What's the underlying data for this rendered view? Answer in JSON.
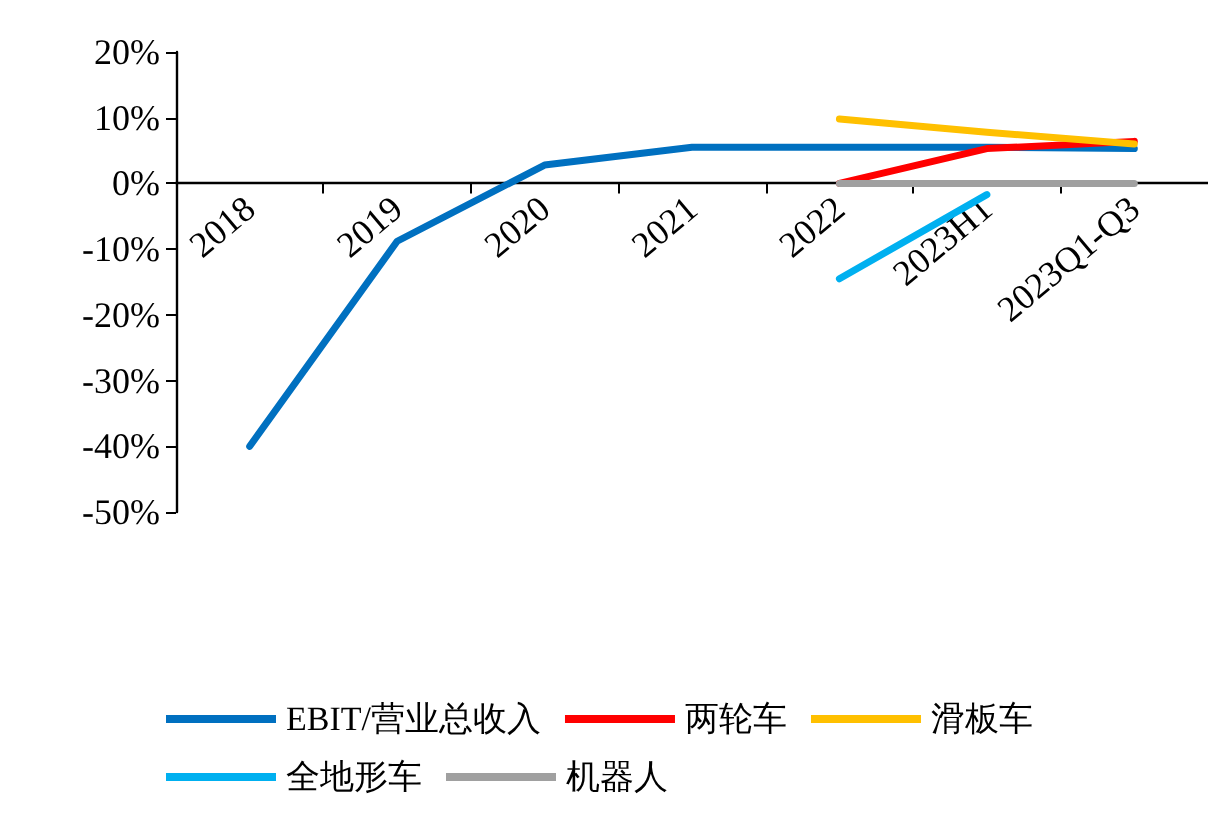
{
  "chart_data": {
    "type": "line",
    "categories": [
      "2018",
      "2019",
      "2020",
      "2021",
      "2022",
      "2023H1",
      "2023Q1-Q3"
    ],
    "series": [
      {
        "name": "EBIT/营业总收入",
        "color": "#0070c0",
        "values": [
          -40,
          -8.8,
          2.8,
          5.5,
          5.5,
          5.5,
          5.3
        ]
      },
      {
        "name": "两轮车",
        "color": "#ff0000",
        "values": [
          null,
          null,
          null,
          null,
          0,
          5.3,
          6.4
        ]
      },
      {
        "name": "滑板车",
        "color": "#ffc000",
        "values": [
          null,
          null,
          null,
          null,
          9.8,
          7.8,
          6.0
        ]
      },
      {
        "name": "全地形车",
        "color": "#00b0f0",
        "values": [
          null,
          null,
          null,
          null,
          -14.5,
          -1.7,
          null
        ]
      },
      {
        "name": "机器人",
        "color": "#a0a0a0",
        "values": [
          null,
          null,
          null,
          null,
          0,
          0,
          0
        ]
      }
    ],
    "ylim": [
      -50,
      20
    ],
    "yticks": [
      {
        "value": -50,
        "label": "-50%"
      },
      {
        "value": -40,
        "label": "-40%"
      },
      {
        "value": -30,
        "label": "-30%"
      },
      {
        "value": -20,
        "label": "-20%"
      },
      {
        "value": -10,
        "label": "-10%"
      },
      {
        "value": 0,
        "label": "0%"
      },
      {
        "value": 10,
        "label": "10%"
      },
      {
        "value": 20,
        "label": "20%"
      }
    ],
    "grid": false,
    "legend": "bottom",
    "marker": "none",
    "line_style": "solid"
  }
}
